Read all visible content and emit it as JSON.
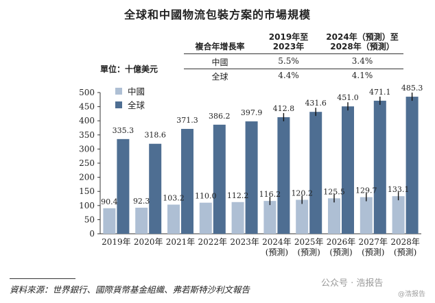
{
  "chart_data": {
    "type": "bar",
    "title": "全球和中國物流包裝方案的市場規模",
    "unit_label": "單位：十億美元",
    "categories": [
      "2019年",
      "2020年",
      "2021年",
      "2022年",
      "2023年",
      "2024年",
      "2025年",
      "2026年",
      "2027年",
      "2028年"
    ],
    "category_sublabels": [
      "",
      "",
      "",
      "",
      "",
      "(預測)",
      "(預測)",
      "(預測)",
      "(預測)",
      "(預測)"
    ],
    "series": [
      {
        "name": "中國",
        "color": "#aebfd4",
        "values": [
          90.4,
          92.3,
          103.2,
          110.0,
          112.2,
          116.2,
          120.2,
          125.5,
          129.7,
          133.1
        ]
      },
      {
        "name": "全球",
        "color": "#4e6e92",
        "values": [
          335.3,
          318.6,
          371.3,
          386.2,
          397.9,
          412.8,
          431.6,
          451.0,
          471.1,
          485.3
        ]
      }
    ],
    "value_labels": {
      "中國": [
        "90.4",
        "92.3",
        "103.2",
        "110.0",
        "112.2",
        "116.2",
        "120.2",
        "125.5",
        "129.7",
        "133.1"
      ],
      "全球": [
        "335.3",
        "318.6",
        "371.3",
        "386.2",
        "397.9",
        "412.8",
        "431.6",
        "451.0",
        "471.1",
        "485.3"
      ]
    },
    "forecast_start_index": 5,
    "ylim": [
      0,
      500
    ],
    "yticks": [
      0,
      50,
      100,
      150,
      200,
      250,
      300,
      350,
      400,
      450,
      500
    ],
    "legend_position": "top-left",
    "grid": false
  },
  "cagr_table": {
    "header": [
      "複合年增長率",
      "2019年至\n2023年",
      "2024年（預測）至\n2028年（預測）"
    ],
    "rows": [
      [
        "中國",
        "5.5%",
        "3.4%"
      ],
      [
        "全球",
        "4.4%",
        "4.1%"
      ]
    ]
  },
  "source": "資料來源：世界銀行、國際貨幣基金組織、弗若斯特沙利文報告",
  "watermark": {
    "primary": "公众号 · 浩报告",
    "secondary": "@浩报告"
  }
}
